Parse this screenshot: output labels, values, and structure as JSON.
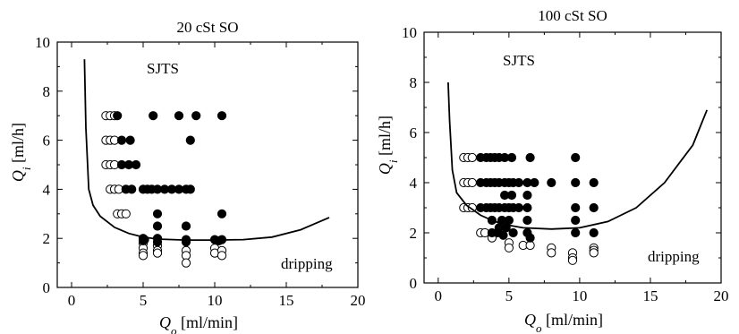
{
  "chart_data": [
    {
      "type": "scatter",
      "title": "20 cSt SO",
      "xlabel": "Q_o [ml/min]",
      "ylabel": "Q_i [ml/h]",
      "xlim": [
        -1,
        20
      ],
      "ylim": [
        0,
        10
      ],
      "xticks": [
        0,
        5,
        10,
        15,
        20
      ],
      "yticks": [
        0,
        2,
        4,
        6,
        8,
        10
      ],
      "annotations": [
        "SJTS",
        "dripping"
      ],
      "series": [
        {
          "marker": "open-circle",
          "points": [
            [
              2.4,
              7
            ],
            [
              2.7,
              7
            ],
            [
              3.0,
              7
            ],
            [
              2.4,
              6
            ],
            [
              2.7,
              6
            ],
            [
              3.0,
              6
            ],
            [
              2.4,
              5
            ],
            [
              2.7,
              5
            ],
            [
              3.0,
              5
            ],
            [
              2.7,
              4
            ],
            [
              3.0,
              4
            ],
            [
              3.3,
              4
            ],
            [
              3.2,
              3
            ],
            [
              3.5,
              3
            ],
            [
              3.8,
              3
            ],
            [
              5,
              1.8
            ],
            [
              5,
              1.6
            ],
            [
              5,
              1.4
            ],
            [
              5,
              1.3
            ],
            [
              6,
              1.7
            ],
            [
              6,
              1.5
            ],
            [
              6,
              1.4
            ],
            [
              8,
              1.5
            ],
            [
              8,
              1.3
            ],
            [
              8,
              1.0
            ],
            [
              10,
              1.6
            ],
            [
              10,
              1.4
            ],
            [
              10.5,
              1.5
            ],
            [
              10.5,
              1.3
            ]
          ]
        },
        {
          "marker": "filled-circle",
          "points": [
            [
              3.2,
              7
            ],
            [
              3.5,
              6
            ],
            [
              4.1,
              6
            ],
            [
              3.5,
              5
            ],
            [
              4.0,
              5
            ],
            [
              4.5,
              5
            ],
            [
              3.8,
              4
            ],
            [
              4.2,
              4
            ],
            [
              5.0,
              4
            ],
            [
              5.3,
              4
            ],
            [
              5.6,
              4
            ],
            [
              6.0,
              4
            ],
            [
              6.5,
              4
            ],
            [
              7.0,
              4
            ],
            [
              7.5,
              4
            ],
            [
              8.0,
              4
            ],
            [
              8.3,
              4
            ],
            [
              5.7,
              7
            ],
            [
              7.5,
              7
            ],
            [
              8.7,
              7
            ],
            [
              10.5,
              7
            ],
            [
              8.3,
              6
            ],
            [
              6,
              3
            ],
            [
              10.5,
              3
            ],
            [
              6,
              2.5
            ],
            [
              8,
              2.5
            ],
            [
              5,
              2
            ],
            [
              5,
              1.9
            ],
            [
              5.1,
              1.95
            ],
            [
              6,
              2
            ],
            [
              6,
              1.85
            ],
            [
              8,
              1.95
            ],
            [
              8,
              1.85
            ],
            [
              10,
              1.95
            ],
            [
              10.3,
              1.9
            ],
            [
              10.5,
              1.95
            ]
          ]
        },
        {
          "name": "",
          "marker": "line",
          "x": [
            0.9,
            1.0,
            1.2,
            1.5,
            2,
            3,
            4,
            5,
            6,
            8,
            10,
            12,
            14,
            16,
            18
          ],
          "y": [
            9.3,
            6.5,
            4.0,
            3.35,
            2.9,
            2.45,
            2.2,
            2.05,
            1.97,
            1.93,
            1.93,
            1.95,
            2.05,
            2.35,
            2.85
          ]
        }
      ]
    },
    {
      "type": "scatter",
      "title": "100 cSt SO",
      "xlabel": "Q_o [ml/min]",
      "ylabel": "Q_i [ml/h]",
      "xlim": [
        -1,
        20
      ],
      "ylim": [
        0,
        10
      ],
      "xticks": [
        0,
        5,
        10,
        15,
        20
      ],
      "yticks": [
        0,
        2,
        4,
        6,
        8,
        10
      ],
      "annotations": [
        "SJTS",
        "dripping"
      ],
      "series": [
        {
          "marker": "open-circle",
          "points": [
            [
              1.8,
              5
            ],
            [
              2.1,
              5
            ],
            [
              2.4,
              5
            ],
            [
              1.8,
              4
            ],
            [
              2.1,
              4
            ],
            [
              2.4,
              4
            ],
            [
              1.8,
              3
            ],
            [
              2.1,
              3
            ],
            [
              2.4,
              3
            ],
            [
              3.0,
              2
            ],
            [
              3.3,
              2
            ],
            [
              3.8,
              1.8
            ],
            [
              5,
              1.6
            ],
            [
              5,
              1.4
            ],
            [
              6,
              1.5
            ],
            [
              6.5,
              1.5
            ],
            [
              8,
              1.4
            ],
            [
              8,
              1.2
            ],
            [
              9.5,
              1.2
            ],
            [
              9.5,
              1.0
            ],
            [
              9.5,
              0.9
            ],
            [
              11,
              1.4
            ],
            [
              11,
              1.3
            ],
            [
              11,
              1.2
            ]
          ]
        },
        {
          "marker": "filled-circle",
          "points": [
            [
              3.0,
              5
            ],
            [
              3.4,
              5
            ],
            [
              3.7,
              5
            ],
            [
              4.0,
              5
            ],
            [
              4.3,
              5
            ],
            [
              4.7,
              5
            ],
            [
              5.2,
              5
            ],
            [
              6.5,
              5
            ],
            [
              9.7,
              5
            ],
            [
              3.0,
              4
            ],
            [
              3.4,
              4
            ],
            [
              3.7,
              4
            ],
            [
              4.0,
              4
            ],
            [
              4.3,
              4
            ],
            [
              4.7,
              4
            ],
            [
              5.0,
              4
            ],
            [
              5.3,
              4
            ],
            [
              5.7,
              4
            ],
            [
              6.3,
              4
            ],
            [
              6.8,
              4
            ],
            [
              8.0,
              4
            ],
            [
              9.7,
              4
            ],
            [
              11,
              4
            ],
            [
              4.7,
              3.5
            ],
            [
              5.2,
              3.5
            ],
            [
              6.3,
              3.5
            ],
            [
              3.0,
              3
            ],
            [
              3.4,
              3
            ],
            [
              3.7,
              3
            ],
            [
              4.0,
              3
            ],
            [
              4.3,
              3
            ],
            [
              4.7,
              3
            ],
            [
              5.0,
              3
            ],
            [
              5.3,
              3
            ],
            [
              5.7,
              3
            ],
            [
              6.3,
              3
            ],
            [
              9.7,
              3
            ],
            [
              11,
              3
            ],
            [
              3.8,
              2.5
            ],
            [
              4.5,
              2.5
            ],
            [
              5.0,
              2.5
            ],
            [
              6.3,
              2.5
            ],
            [
              9.7,
              2.5
            ],
            [
              4.3,
              2.2
            ],
            [
              4.8,
              2.2
            ],
            [
              5.3,
              2
            ],
            [
              6.3,
              2
            ],
            [
              6.5,
              1.8
            ],
            [
              9.7,
              2
            ],
            [
              11,
              2
            ],
            [
              3.8,
              2.0
            ],
            [
              4.2,
              2.0
            ],
            [
              4.6,
              1.9
            ]
          ]
        },
        {
          "name": "",
          "marker": "line",
          "x": [
            0.7,
            0.8,
            1.0,
            1.3,
            2,
            3,
            4,
            5,
            6,
            8,
            10,
            12,
            14,
            16,
            18,
            19
          ],
          "y": [
            8.0,
            6.5,
            4.5,
            3.6,
            3.1,
            2.7,
            2.45,
            2.3,
            2.2,
            2.15,
            2.2,
            2.45,
            3.0,
            4.0,
            5.5,
            6.9
          ]
        }
      ]
    }
  ]
}
